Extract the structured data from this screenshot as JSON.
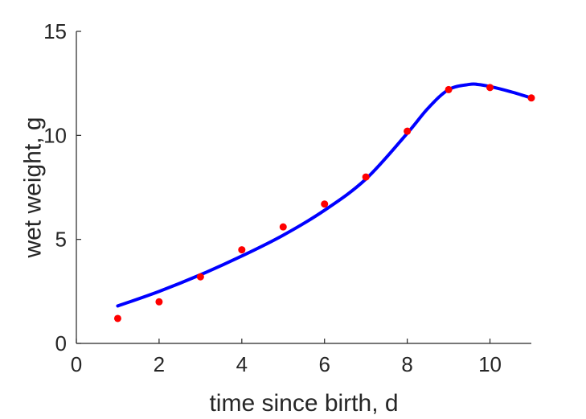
{
  "chart_data": {
    "type": "scatter",
    "title": "",
    "xlabel": "time since birth, d",
    "ylabel": "wet weight, g",
    "xlim": [
      0,
      11
    ],
    "ylim": [
      0,
      15
    ],
    "xticks": [
      0,
      2,
      4,
      6,
      8,
      10
    ],
    "yticks": [
      0,
      5,
      10,
      15
    ],
    "grid": false,
    "series": [
      {
        "kind": "points",
        "color": "#ff0000",
        "x": [
          1,
          2,
          3,
          4,
          5,
          6,
          7,
          8,
          9,
          10,
          11
        ],
        "y": [
          1.2,
          2.0,
          3.2,
          4.5,
          5.6,
          6.7,
          8.0,
          10.2,
          12.2,
          12.3,
          11.8
        ]
      },
      {
        "kind": "line",
        "color": "#0000ff",
        "x": [
          1,
          2,
          3,
          4,
          5,
          6,
          7,
          8,
          8.5,
          9,
          9.5,
          9.7,
          10,
          10.5,
          11
        ],
        "y": [
          1.8,
          2.5,
          3.3,
          4.2,
          5.2,
          6.4,
          7.9,
          10.1,
          11.3,
          12.2,
          12.45,
          12.45,
          12.35,
          12.1,
          11.8
        ]
      }
    ]
  }
}
